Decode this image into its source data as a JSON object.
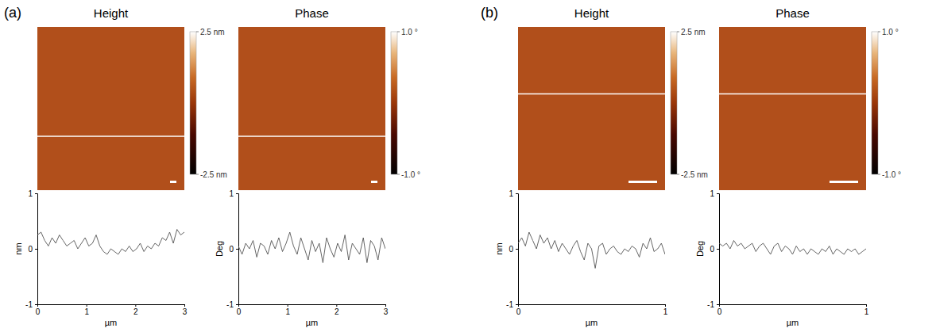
{
  "chart_data": [
    {
      "type": "line",
      "panel": "(a)",
      "title": "Height",
      "x_label": "µm",
      "y_label": "nm",
      "color": "#555555",
      "x": [
        0,
        0.075,
        0.15,
        0.225,
        0.3,
        0.375,
        0.45,
        0.525,
        0.6,
        0.675,
        0.75,
        0.825,
        0.9,
        0.975,
        1.05,
        1.125,
        1.2,
        1.275,
        1.35,
        1.425,
        1.5,
        1.575,
        1.65,
        1.725,
        1.8,
        1.875,
        1.95,
        2.025,
        2.1,
        2.175,
        2.25,
        2.325,
        2.4,
        2.475,
        2.55,
        2.625,
        2.7,
        2.775,
        2.85,
        2.925,
        3
      ],
      "values": [
        0.25,
        0.3,
        0.15,
        0.05,
        0.2,
        0.1,
        0.25,
        0.15,
        0.05,
        0.1,
        0.15,
        0.0,
        0.1,
        0.2,
        0.05,
        0.1,
        0.25,
        0.05,
        -0.05,
        -0.1,
        0.0,
        -0.05,
        -0.1,
        0.0,
        -0.05,
        0.05,
        -0.05,
        0.0,
        0.1,
        -0.05,
        0.05,
        0.0,
        0.1,
        0.05,
        0.2,
        0.15,
        0.3,
        0.1,
        0.35,
        0.25,
        0.3
      ],
      "xlim": [
        0,
        3
      ],
      "ylim": [
        -1,
        1
      ],
      "xticks": [
        0,
        1,
        2,
        3
      ],
      "yticks": [
        -1,
        0,
        1
      ],
      "colorbar": {
        "range": [
          -2.5,
          2.5
        ],
        "ticks": [
          {
            "value": 2.5,
            "label": "2.5 nm"
          },
          {
            "value": -2.5,
            "label": "-2.5 nm"
          }
        ]
      }
    },
    {
      "type": "line",
      "title": "Phase",
      "x_label": "µm",
      "y_label": "Deg",
      "color": "#555555",
      "x": [
        0,
        0.075,
        0.15,
        0.225,
        0.3,
        0.375,
        0.45,
        0.525,
        0.6,
        0.675,
        0.75,
        0.825,
        0.9,
        0.975,
        1.05,
        1.125,
        1.2,
        1.275,
        1.35,
        1.425,
        1.5,
        1.575,
        1.65,
        1.725,
        1.8,
        1.875,
        1.95,
        2.025,
        2.1,
        2.175,
        2.25,
        2.325,
        2.4,
        2.475,
        2.55,
        2.625,
        2.7,
        2.775,
        2.85,
        2.925,
        3
      ],
      "values": [
        0.05,
        -0.1,
        0.1,
        0.0,
        0.15,
        -0.15,
        0.1,
        0.05,
        -0.1,
        0.15,
        0.0,
        0.2,
        -0.05,
        0.1,
        0.3,
        0.05,
        -0.1,
        0.2,
        0.0,
        -0.2,
        0.15,
        -0.05,
        0.1,
        -0.25,
        0.2,
        0.0,
        -0.15,
        0.1,
        -0.05,
        0.25,
        -0.2,
        0.1,
        0.0,
        -0.1,
        0.2,
        -0.25,
        0.15,
        0.05,
        -0.2,
        0.2,
        0.0
      ],
      "xlim": [
        0,
        3
      ],
      "ylim": [
        -1,
        1
      ],
      "xticks": [
        0,
        1,
        2,
        3
      ],
      "yticks": [
        -1,
        0,
        1
      ],
      "colorbar": {
        "range": [
          -1,
          1
        ],
        "ticks": [
          {
            "value": 1,
            "label": "1.0 °"
          },
          {
            "value": -1,
            "label": "-1.0 °"
          }
        ]
      }
    },
    {
      "type": "line",
      "panel": "(b)",
      "title": "Height",
      "x_label": "µm",
      "y_label": "nm",
      "color": "#555555",
      "x": [
        0,
        0.025,
        0.05,
        0.075,
        0.1,
        0.125,
        0.15,
        0.175,
        0.2,
        0.225,
        0.25,
        0.275,
        0.3,
        0.325,
        0.35,
        0.375,
        0.4,
        0.425,
        0.45,
        0.475,
        0.5,
        0.525,
        0.55,
        0.575,
        0.6,
        0.625,
        0.65,
        0.675,
        0.7,
        0.725,
        0.75,
        0.775,
        0.8,
        0.825,
        0.85,
        0.875,
        0.9,
        0.925,
        0.95,
        0.975,
        1
      ],
      "values": [
        0.1,
        0.2,
        0.05,
        0.3,
        0.15,
        0.0,
        0.25,
        0.1,
        0.2,
        0.0,
        0.15,
        -0.05,
        0.1,
        0.0,
        -0.1,
        0.05,
        0.15,
        -0.05,
        -0.2,
        0.1,
        0.0,
        -0.35,
        0.05,
        0.1,
        -0.1,
        0.0,
        0.05,
        -0.05,
        -0.1,
        0.0,
        -0.05,
        0.05,
        0.0,
        -0.15,
        0.1,
        0.0,
        0.2,
        -0.05,
        0.0,
        0.1,
        -0.1
      ],
      "xlim": [
        0,
        1
      ],
      "ylim": [
        -1,
        1
      ],
      "xticks": [
        0,
        1
      ],
      "yticks": [
        -1,
        0,
        1
      ],
      "colorbar": {
        "range": [
          -2.5,
          2.5
        ],
        "ticks": [
          {
            "value": 2.5,
            "label": "2.5 nm"
          },
          {
            "value": -2.5,
            "label": "-2.5 nm"
          }
        ]
      }
    },
    {
      "type": "line",
      "title": "Phase",
      "x_label": "µm",
      "y_label": "Deg",
      "color": "#555555",
      "x": [
        0,
        0.025,
        0.05,
        0.075,
        0.1,
        0.125,
        0.15,
        0.175,
        0.2,
        0.225,
        0.25,
        0.275,
        0.3,
        0.325,
        0.35,
        0.375,
        0.4,
        0.425,
        0.45,
        0.475,
        0.5,
        0.525,
        0.55,
        0.575,
        0.6,
        0.625,
        0.65,
        0.675,
        0.7,
        0.725,
        0.75,
        0.775,
        0.8,
        0.825,
        0.85,
        0.875,
        0.9,
        0.925,
        0.95,
        0.975,
        1
      ],
      "values": [
        0.1,
        0.05,
        0.1,
        0.0,
        0.15,
        0.05,
        0.1,
        0.0,
        0.05,
        0.1,
        -0.05,
        0.05,
        0.1,
        0.0,
        -0.1,
        0.05,
        0.1,
        -0.05,
        0.05,
        0.0,
        -0.1,
        0.05,
        -0.05,
        0.0,
        -0.1,
        0.0,
        -0.05,
        -0.1,
        0.0,
        -0.05,
        0.05,
        -0.1,
        0.0,
        -0.05,
        -0.1,
        0.0,
        -0.05,
        0.0,
        -0.1,
        -0.05,
        0.0
      ],
      "xlim": [
        0,
        1
      ],
      "ylim": [
        -1,
        1
      ],
      "xticks": [
        0,
        1
      ],
      "yticks": [
        -1,
        0,
        1
      ],
      "colorbar": {
        "range": [
          -1,
          1
        ],
        "ticks": [
          {
            "value": 1,
            "label": "1.0 °"
          },
          {
            "value": -1,
            "label": "-1.0 °"
          }
        ]
      }
    }
  ]
}
